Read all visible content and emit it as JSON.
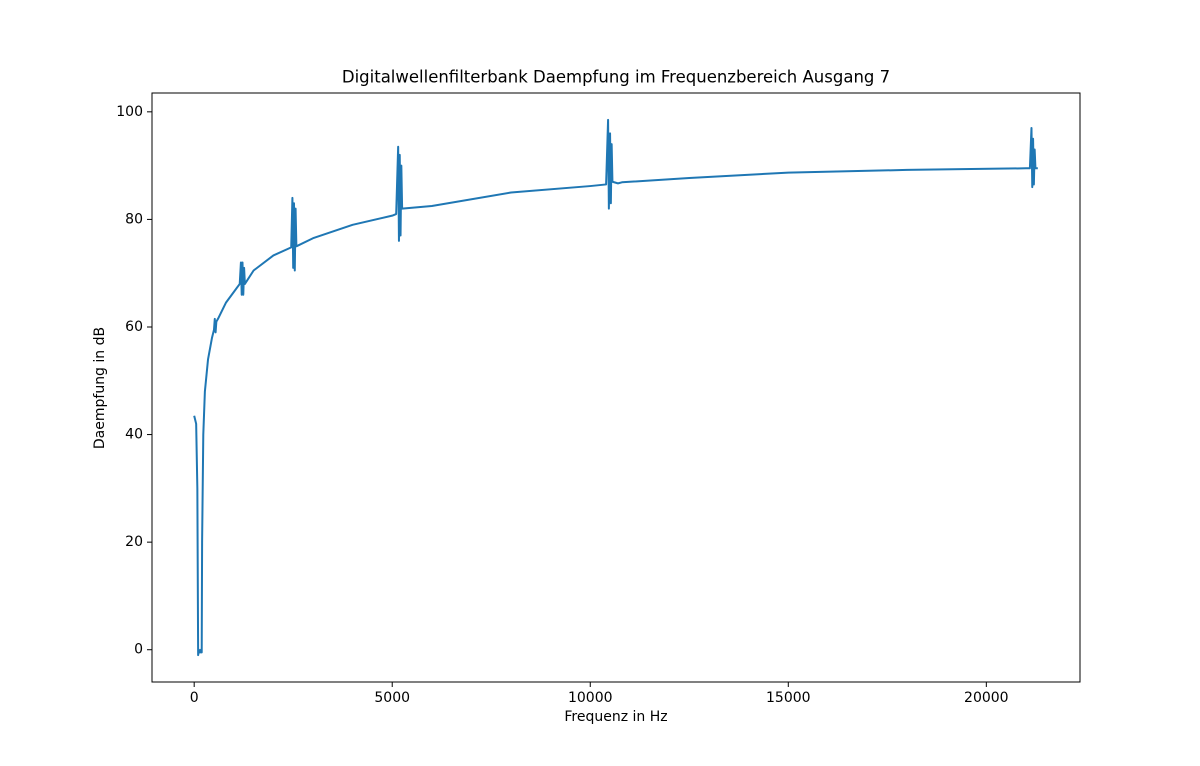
{
  "chart_data": {
    "type": "line",
    "title": "Digitalwellenfilterbank Daempfung im Frequenzbereich Ausgang 7",
    "x_label": "Frequenz in Hz",
    "y_label": "Daempfung in dB",
    "x": [
      0,
      50,
      80,
      100,
      120,
      150,
      170,
      190,
      200,
      230,
      270,
      350,
      450,
      500,
      520,
      540,
      560,
      600,
      800,
      1000,
      1150,
      1180,
      1200,
      1220,
      1240,
      1260,
      1280,
      1500,
      2000,
      2450,
      2480,
      2500,
      2520,
      2540,
      2560,
      2580,
      3000,
      4000,
      5000,
      5100,
      5150,
      5170,
      5190,
      5210,
      5230,
      5250,
      6000,
      8000,
      10000,
      10400,
      10450,
      10470,
      10500,
      10520,
      10540,
      10560,
      10700,
      10800,
      12500,
      15000,
      18000,
      21000,
      21100,
      21140,
      21160,
      21180,
      21200,
      21220,
      21240,
      21300
    ],
    "values": [
      43.5,
      42,
      30,
      -1,
      0,
      -0.5,
      0,
      -0.5,
      20,
      40,
      48,
      54,
      58,
      59.5,
      61.5,
      59,
      61,
      61.5,
      64.5,
      66.5,
      68,
      72,
      66,
      72,
      66,
      71,
      68,
      70.5,
      73.3,
      74.8,
      84,
      71,
      83,
      70.5,
      82,
      75,
      76.5,
      79,
      80.7,
      81,
      93.5,
      76,
      92,
      77,
      90,
      82,
      82.5,
      85,
      86.2,
      86.5,
      98.5,
      82,
      96,
      83,
      94,
      87,
      86.7,
      86.9,
      87.7,
      88.7,
      89.2,
      89.5,
      89.5,
      97,
      86,
      95,
      86.5,
      93,
      89.5,
      89.5
    ],
    "color": "#1f77b4",
    "xlim": [
      -1065,
      22365
    ],
    "ylim": [
      -6,
      103.5
    ],
    "xticks": [
      0,
      5000,
      10000,
      15000,
      20000
    ],
    "yticks": [
      0,
      20,
      40,
      60,
      80,
      100
    ]
  }
}
